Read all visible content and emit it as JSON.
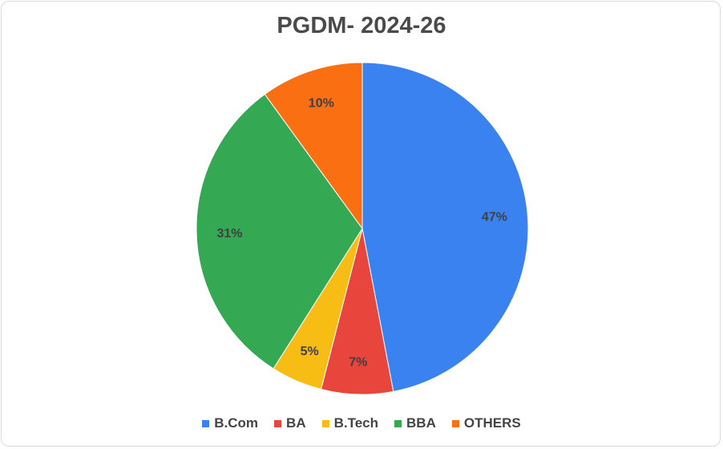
{
  "chart_data": {
    "type": "pie",
    "title": "PGDM- 2024-26",
    "categories": [
      "B.Com",
      "BA",
      "B.Tech",
      "BBA",
      "OTHERS"
    ],
    "values": [
      47,
      7,
      5,
      31,
      10
    ],
    "labels": [
      "47%",
      "7%",
      "5%",
      "31%",
      "10%"
    ],
    "colors": [
      "#3b82f1",
      "#e8453c",
      "#f7bd14",
      "#34a853",
      "#fb6f13"
    ],
    "legend_position": "bottom"
  }
}
